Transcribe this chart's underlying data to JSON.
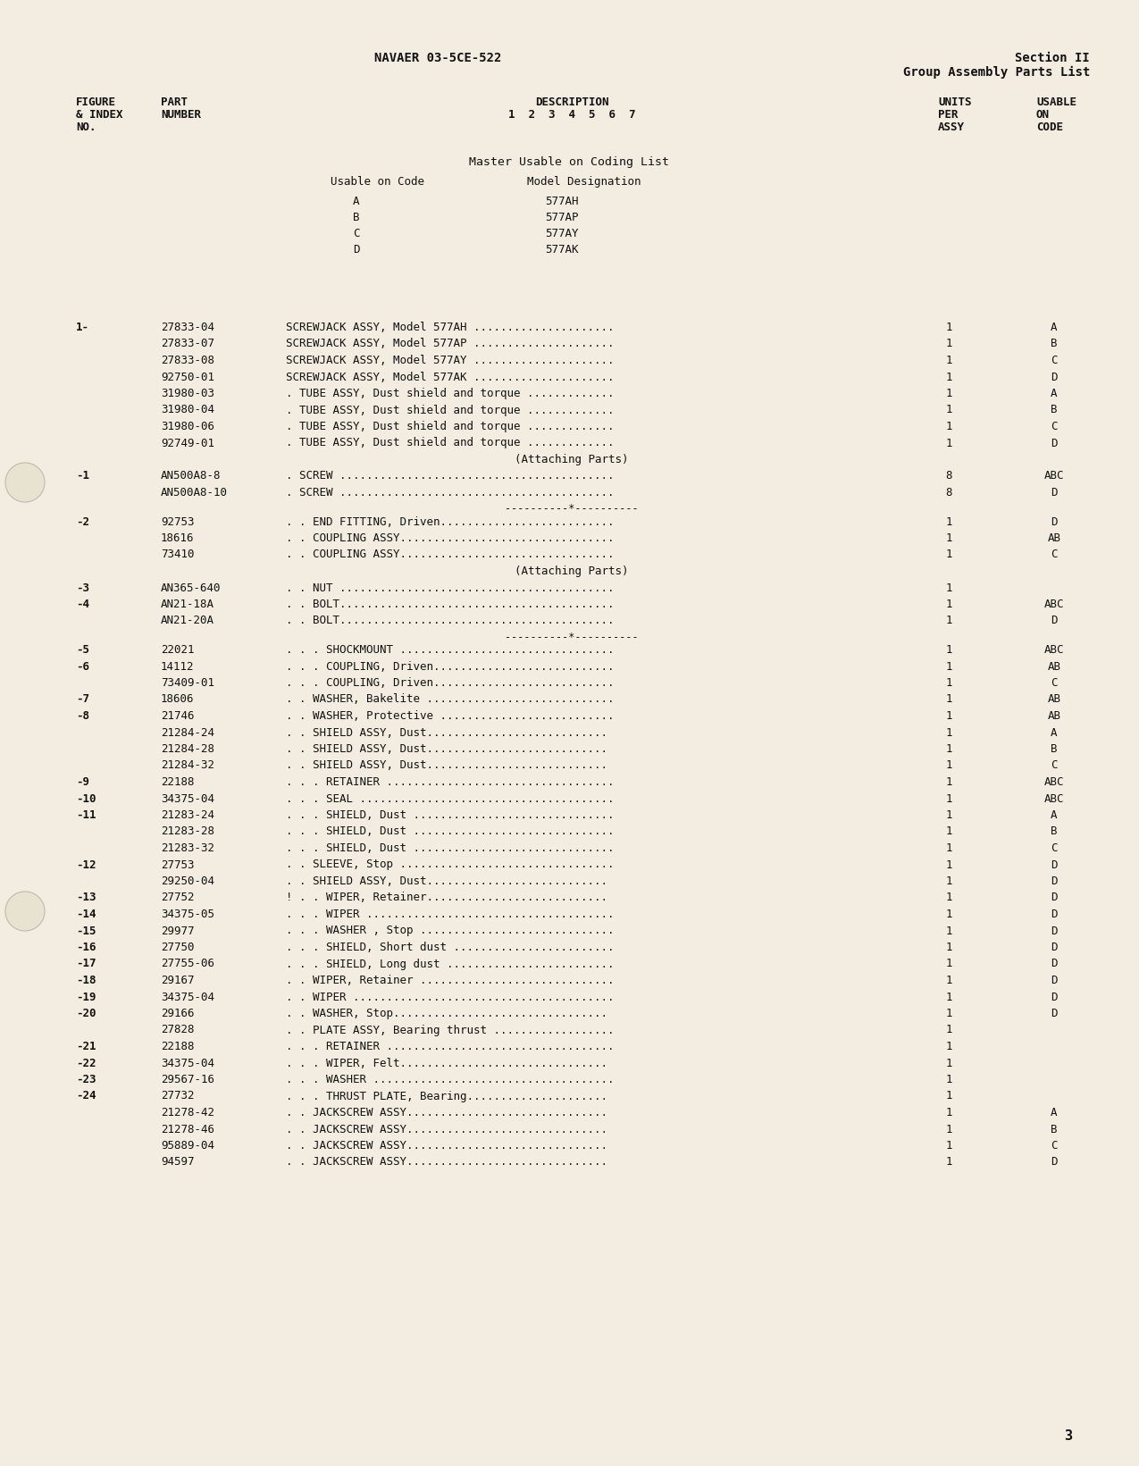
{
  "bg_color": "#f2ede0",
  "header_center": "NAVAER 03-5CE-522",
  "header_right_line1": "Section II",
  "header_right_line2": "Group Assembly Parts List",
  "coding_title": "Master Usable on Coding List",
  "coding_entries": [
    [
      "A",
      "577AH"
    ],
    [
      "B",
      "577AP"
    ],
    [
      "C",
      "577AY"
    ],
    [
      "D",
      "577AK"
    ]
  ],
  "rows": [
    {
      "fig": "1-",
      "part": "27833-04",
      "desc": "SCREWJACK ASSY, Model 577AH .....................",
      "units": "1",
      "code": "A"
    },
    {
      "fig": "",
      "part": "27833-07",
      "desc": "SCREWJACK ASSY, Model 577AP .....................",
      "units": "1",
      "code": "B"
    },
    {
      "fig": "",
      "part": "27833-08",
      "desc": "SCREWJACK ASSY, Model 577AY .....................",
      "units": "1",
      "code": "C"
    },
    {
      "fig": "",
      "part": "92750-01",
      "desc": "SCREWJACK ASSY, Model 577AK .....................",
      "units": "1",
      "code": "D"
    },
    {
      "fig": "",
      "part": "31980-03",
      "desc": ". TUBE ASSY, Dust shield and torque .............",
      "units": "1",
      "code": "A"
    },
    {
      "fig": "",
      "part": "31980-04",
      "desc": ". TUBE ASSY, Dust shield and torque .............",
      "units": "1",
      "code": "B"
    },
    {
      "fig": "",
      "part": "31980-06",
      "desc": ". TUBE ASSY, Dust shield and torque .............",
      "units": "1",
      "code": "C"
    },
    {
      "fig": "",
      "part": "92749-01",
      "desc": ". TUBE ASSY, Dust shield and torque .............",
      "units": "1",
      "code": "D"
    },
    {
      "fig": "",
      "part": "",
      "desc": "(Attaching Parts)",
      "units": "",
      "code": "",
      "center": true
    },
    {
      "fig": "-1",
      "part": "AN500A8-8",
      "desc": ". SCREW .........................................",
      "units": "8",
      "code": "ABC"
    },
    {
      "fig": "",
      "part": "AN500A8-10",
      "desc": ". SCREW .........................................",
      "units": "8",
      "code": "D"
    },
    {
      "fig": "",
      "part": "",
      "desc": "----------*----------",
      "units": "",
      "code": "",
      "sep": true
    },
    {
      "fig": "-2",
      "part": "92753",
      "desc": ". . END FITTING, Driven..........................",
      "units": "1",
      "code": "D"
    },
    {
      "fig": "",
      "part": "18616",
      "desc": ". . COUPLING ASSY................................",
      "units": "1",
      "code": "AB"
    },
    {
      "fig": "",
      "part": "73410",
      "desc": ". . COUPLING ASSY................................",
      "units": "1",
      "code": "C"
    },
    {
      "fig": "",
      "part": "",
      "desc": "(Attaching Parts)",
      "units": "",
      "code": "",
      "center": true
    },
    {
      "fig": "-3",
      "part": "AN365-640",
      "desc": ". . NUT .........................................",
      "units": "1",
      "code": ""
    },
    {
      "fig": "-4",
      "part": "AN21-18A",
      "desc": ". . BOLT.........................................",
      "units": "1",
      "code": "ABC"
    },
    {
      "fig": "",
      "part": "AN21-20A",
      "desc": ". . BOLT.........................................",
      "units": "1",
      "code": "D"
    },
    {
      "fig": "",
      "part": "",
      "desc": "----------*----------",
      "units": "",
      "code": "",
      "sep": true
    },
    {
      "fig": "-5",
      "part": "22021",
      "desc": ". . . SHOCKMOUNT ................................",
      "units": "1",
      "code": "ABC"
    },
    {
      "fig": "-6",
      "part": "14112",
      "desc": ". . . COUPLING, Driven...........................",
      "units": "1",
      "code": "AB"
    },
    {
      "fig": "",
      "part": "73409-01",
      "desc": ". . . COUPLING, Driven...........................",
      "units": "1",
      "code": "C"
    },
    {
      "fig": "-7",
      "part": "18606",
      "desc": ". . WASHER, Bakelite ............................",
      "units": "1",
      "code": "AB"
    },
    {
      "fig": "-8",
      "part": "21746",
      "desc": ". . WASHER, Protective ..........................",
      "units": "1",
      "code": "AB"
    },
    {
      "fig": "",
      "part": "21284-24",
      "desc": ". . SHIELD ASSY, Dust...........................",
      "units": "1",
      "code": "A"
    },
    {
      "fig": "",
      "part": "21284-28",
      "desc": ". . SHIELD ASSY, Dust...........................",
      "units": "1",
      "code": "B"
    },
    {
      "fig": "",
      "part": "21284-32",
      "desc": ". . SHIELD ASSY, Dust...........................",
      "units": "1",
      "code": "C"
    },
    {
      "fig": "-9",
      "part": "22188",
      "desc": ". . . RETAINER ..................................",
      "units": "1",
      "code": "ABC"
    },
    {
      "fig": "-10",
      "part": "34375-04",
      "desc": ". . . SEAL ......................................",
      "units": "1",
      "code": "ABC"
    },
    {
      "fig": "-11",
      "part": "21283-24",
      "desc": ". . . SHIELD, Dust ..............................",
      "units": "1",
      "code": "A"
    },
    {
      "fig": "",
      "part": "21283-28",
      "desc": ". . . SHIELD, Dust ..............................",
      "units": "1",
      "code": "B"
    },
    {
      "fig": "",
      "part": "21283-32",
      "desc": ". . . SHIELD, Dust ..............................",
      "units": "1",
      "code": "C"
    },
    {
      "fig": "-12",
      "part": "27753",
      "desc": ". . SLEEVE, Stop ................................",
      "units": "1",
      "code": "D"
    },
    {
      "fig": "",
      "part": "29250-04",
      "desc": ". . SHIELD ASSY, Dust...........................",
      "units": "1",
      "code": "D"
    },
    {
      "fig": "-13",
      "part": "27752",
      "desc": "! . . WIPER, Retainer...........................",
      "units": "1",
      "code": "D"
    },
    {
      "fig": "-14",
      "part": "34375-05",
      "desc": ". . . WIPER .....................................",
      "units": "1",
      "code": "D"
    },
    {
      "fig": "-15",
      "part": "29977",
      "desc": ". . . WASHER , Stop .............................",
      "units": "1",
      "code": "D"
    },
    {
      "fig": "-16",
      "part": "27750",
      "desc": ". . . SHIELD, Short dust ........................",
      "units": "1",
      "code": "D"
    },
    {
      "fig": "-17",
      "part": "27755-06",
      "desc": ". . . SHIELD, Long dust .........................",
      "units": "1",
      "code": "D"
    },
    {
      "fig": "-18",
      "part": "29167",
      "desc": ". . WIPER, Retainer .............................",
      "units": "1",
      "code": "D"
    },
    {
      "fig": "-19",
      "part": "34375-04",
      "desc": ". . WIPER .......................................",
      "units": "1",
      "code": "D"
    },
    {
      "fig": "-20",
      "part": "29166",
      "desc": ". . WASHER, Stop................................",
      "units": "1",
      "code": "D"
    },
    {
      "fig": "",
      "part": "27828",
      "desc": ". . PLATE ASSY, Bearing thrust ..................",
      "units": "1",
      "code": ""
    },
    {
      "fig": "-21",
      "part": "22188",
      "desc": ". . . RETAINER ..................................",
      "units": "1",
      "code": ""
    },
    {
      "fig": "-22",
      "part": "34375-04",
      "desc": ". . . WIPER, Felt...............................",
      "units": "1",
      "code": ""
    },
    {
      "fig": "-23",
      "part": "29567-16",
      "desc": ". . . WASHER ....................................",
      "units": "1",
      "code": ""
    },
    {
      "fig": "-24",
      "part": "27732",
      "desc": ". . . THRUST PLATE, Bearing.....................",
      "units": "1",
      "code": ""
    },
    {
      "fig": "",
      "part": "21278-42",
      "desc": ". . JACKSCREW ASSY..............................",
      "units": "1",
      "code": "A"
    },
    {
      "fig": "",
      "part": "21278-46",
      "desc": ". . JACKSCREW ASSY..............................",
      "units": "1",
      "code": "B"
    },
    {
      "fig": "",
      "part": "95889-04",
      "desc": ". . JACKSCREW ASSY..............................",
      "units": "1",
      "code": "C"
    },
    {
      "fig": "",
      "part": "94597",
      "desc": ". . JACKSCREW ASSY..............................",
      "units": "1",
      "code": "D"
    }
  ],
  "page_number": "3"
}
